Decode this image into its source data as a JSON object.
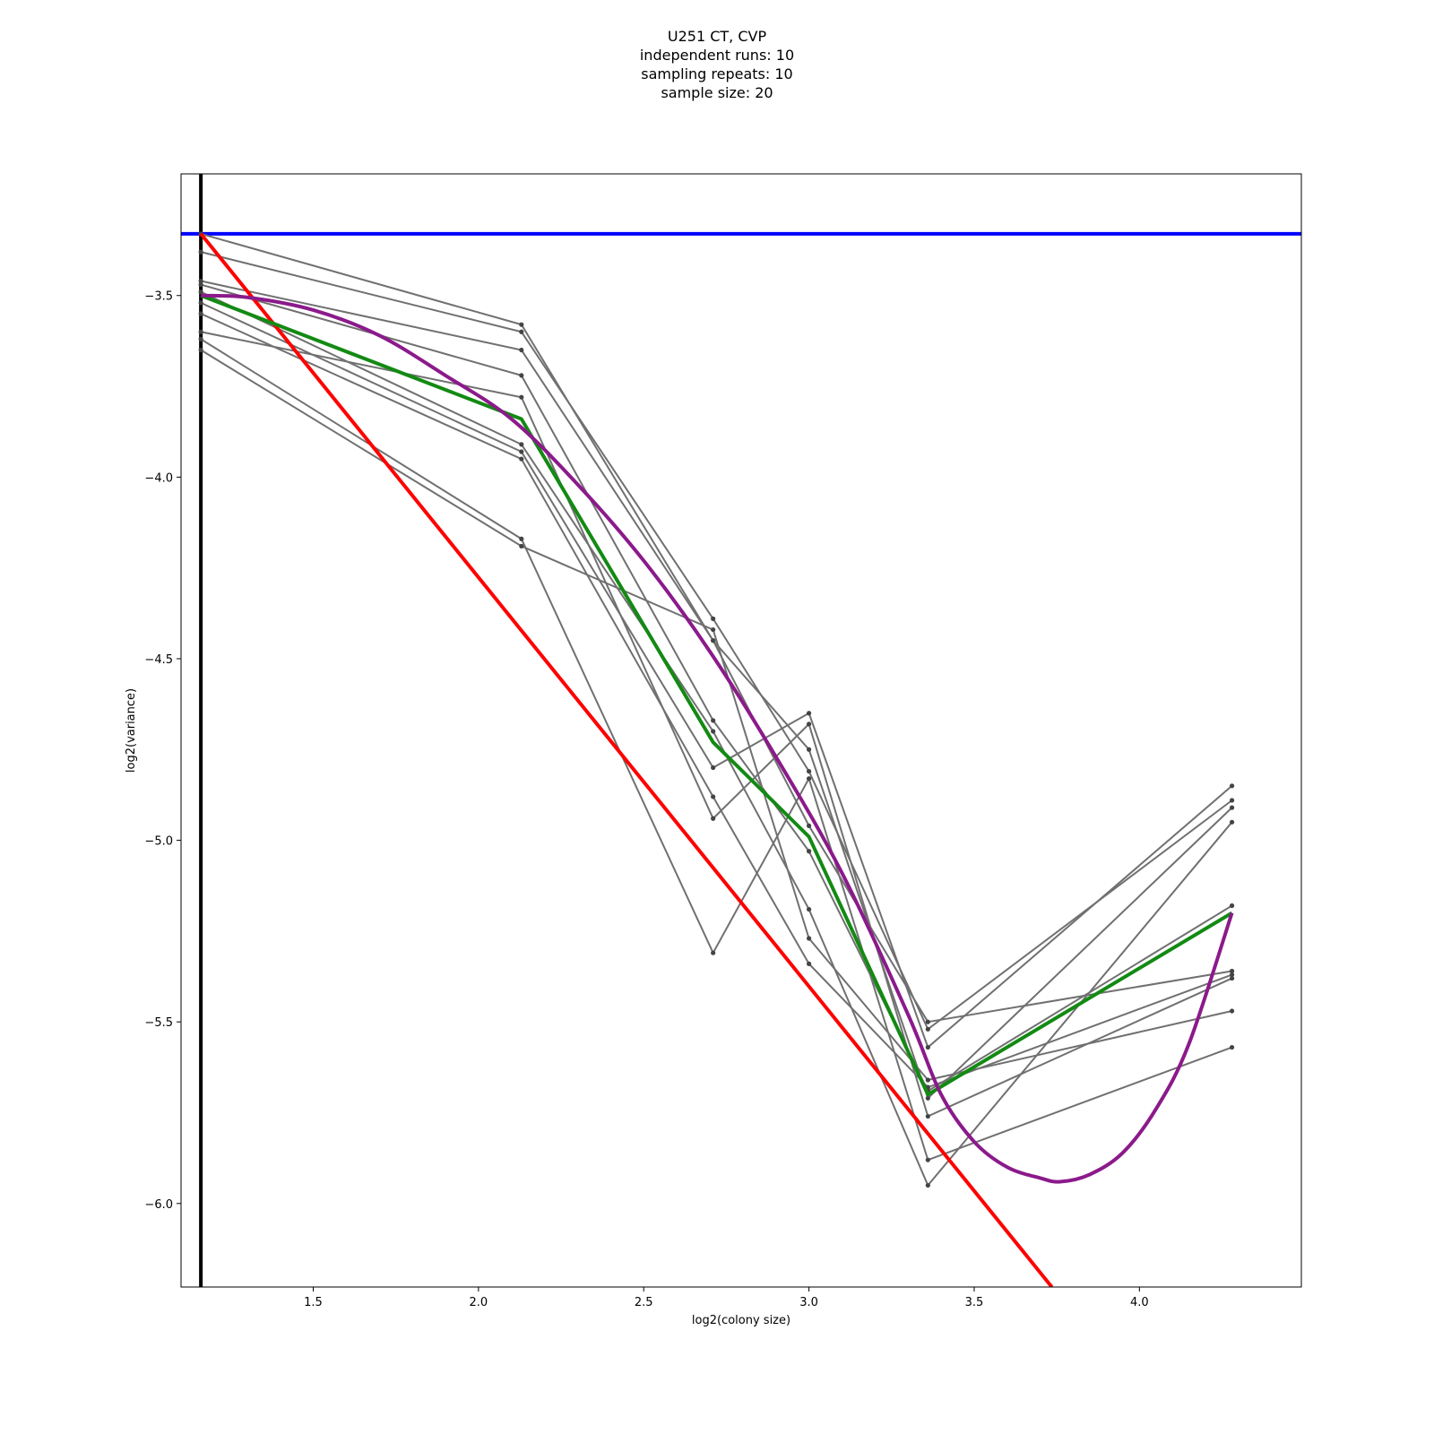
{
  "chart_data": {
    "type": "line",
    "title_lines": [
      "U251 CT, CVP",
      "independent runs: 10",
      "sampling repeats: 10",
      "sample size: 20"
    ],
    "xlabel": "log2(colony size)",
    "ylabel": "log2(variance)",
    "xlim": [
      1.1,
      4.49
    ],
    "ylim": [
      -6.23,
      -3.165
    ],
    "xticks": [
      {
        "value": 1.5,
        "label": "1.5"
      },
      {
        "value": 2.0,
        "label": "2.0"
      },
      {
        "value": 2.5,
        "label": "2.5"
      },
      {
        "value": 3.0,
        "label": "3.0"
      },
      {
        "value": 3.5,
        "label": "3.5"
      },
      {
        "value": 4.0,
        "label": "4.0"
      }
    ],
    "yticks": [
      {
        "value": -3.5,
        "label": "−3.5"
      },
      {
        "value": -4.0,
        "label": "−4.0"
      },
      {
        "value": -4.5,
        "label": "−4.5"
      },
      {
        "value": -5.0,
        "label": "−5.0"
      },
      {
        "value": -5.5,
        "label": "−5.5"
      },
      {
        "value": -6.0,
        "label": "−6.0"
      }
    ],
    "grid": false,
    "x": [
      1.16,
      2.13,
      2.71,
      3.0,
      3.36,
      4.28
    ],
    "runs": [
      {
        "values": [
          -3.33,
          -3.58,
          -4.45,
          -4.75,
          -5.71,
          -4.91
        ]
      },
      {
        "values": [
          -3.38,
          -3.6,
          -4.39,
          -4.81,
          -5.52,
          -4.89
        ]
      },
      {
        "values": [
          -3.46,
          -3.65,
          -4.45,
          -4.96,
          -5.5,
          -5.36
        ]
      },
      {
        "values": [
          -3.47,
          -3.72,
          -4.67,
          -5.03,
          -5.69,
          -5.18
        ]
      },
      {
        "values": [
          -3.49,
          -3.91,
          -4.7,
          -5.19,
          -5.95,
          -4.95
        ]
      },
      {
        "values": [
          -3.52,
          -3.93,
          -4.8,
          -4.65,
          -5.57,
          -4.85
        ]
      },
      {
        "values": [
          -3.55,
          -3.95,
          -4.88,
          -5.34,
          -5.68,
          -5.37
        ]
      },
      {
        "values": [
          -3.6,
          -3.78,
          -4.94,
          -4.68,
          -5.76,
          -5.38
        ]
      },
      {
        "values": [
          -3.62,
          -4.17,
          -5.31,
          -4.83,
          -5.88,
          -5.57
        ]
      },
      {
        "values": [
          -3.65,
          -4.19,
          -4.42,
          -5.27,
          -5.66,
          -5.47
        ]
      }
    ],
    "mean_line": {
      "values": [
        -3.5,
        -3.84,
        -4.73,
        -4.99,
        -5.7,
        -5.2
      ],
      "color": "#138a13"
    },
    "polynomial_fit": {
      "color": "#8b1a8b",
      "x": [
        1.16,
        1.3,
        1.5,
        1.7,
        1.9,
        2.1,
        2.3,
        2.5,
        2.7,
        2.9,
        3.1,
        3.3,
        3.4,
        3.5,
        3.6,
        3.7,
        3.76,
        3.85,
        3.95,
        4.05,
        4.15,
        4.28
      ],
      "y": [
        -3.5,
        -3.505,
        -3.54,
        -3.61,
        -3.72,
        -3.84,
        -4.02,
        -4.23,
        -4.48,
        -4.77,
        -5.09,
        -5.48,
        -5.7,
        -5.83,
        -5.9,
        -5.93,
        -5.94,
        -5.92,
        -5.86,
        -5.74,
        -5.56,
        -5.2
      ]
    },
    "reference_line": {
      "x": [
        1.16,
        3.735
      ],
      "y": [
        -3.33,
        -6.23
      ],
      "color": "#ff0000"
    },
    "horizontal_line": {
      "y": -3.33,
      "color": "#0000ff"
    },
    "vertical_line": {
      "x": 1.16,
      "color": "#000000"
    },
    "runs_color": "#707070"
  }
}
